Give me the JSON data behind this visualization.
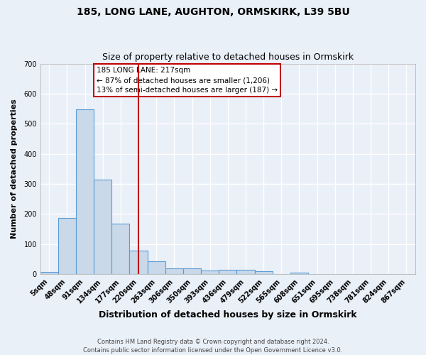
{
  "title1": "185, LONG LANE, AUGHTON, ORMSKIRK, L39 5BU",
  "title2": "Size of property relative to detached houses in Ormskirk",
  "xlabel": "Distribution of detached houses by size in Ormskirk",
  "ylabel": "Number of detached properties",
  "categories": [
    "5sqm",
    "48sqm",
    "91sqm",
    "134sqm",
    "177sqm",
    "220sqm",
    "263sqm",
    "306sqm",
    "350sqm",
    "393sqm",
    "436sqm",
    "479sqm",
    "522sqm",
    "565sqm",
    "608sqm",
    "651sqm",
    "695sqm",
    "738sqm",
    "781sqm",
    "824sqm",
    "867sqm"
  ],
  "values": [
    8,
    188,
    549,
    315,
    168,
    78,
    43,
    20,
    20,
    13,
    14,
    14,
    9,
    0,
    6,
    0,
    0,
    0,
    0,
    0,
    0
  ],
  "bar_color": "#c9d9ea",
  "bar_edge_color": "#5b9bd5",
  "bg_color": "#eaf0f8",
  "grid_color": "#ffffff",
  "annotation_line1": "185 LONG LANE: 217sqm",
  "annotation_line2": "← 87% of detached houses are smaller (1,206)",
  "annotation_line3": "13% of semi-detached houses are larger (187) →",
  "vline_index": 5,
  "vline_color": "#c00000",
  "ylim": [
    0,
    700
  ],
  "yticks": [
    0,
    100,
    200,
    300,
    400,
    500,
    600,
    700
  ],
  "footer": "Contains HM Land Registry data © Crown copyright and database right 2024.\nContains public sector information licensed under the Open Government Licence v3.0.",
  "title1_fontsize": 10,
  "title2_fontsize": 9,
  "xlabel_fontsize": 9,
  "ylabel_fontsize": 8,
  "tick_fontsize": 7,
  "annotation_fontsize": 7.5,
  "footer_fontsize": 6
}
